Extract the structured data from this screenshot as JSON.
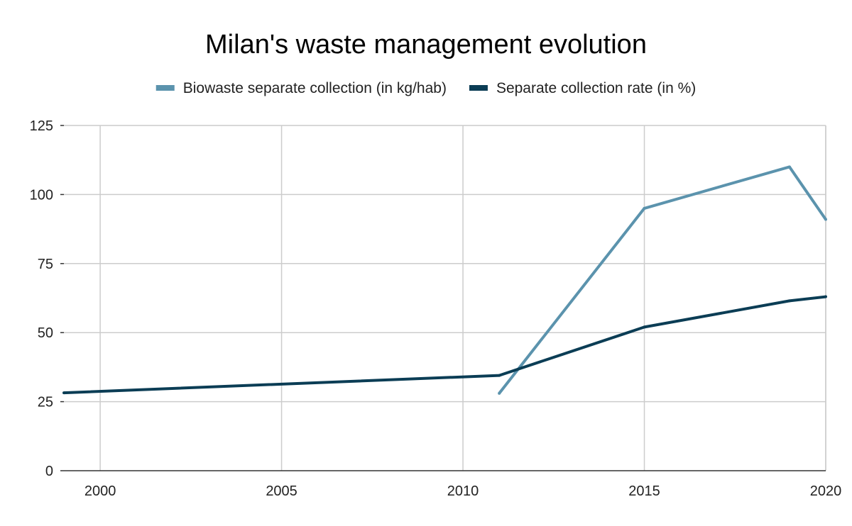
{
  "chart_data": {
    "type": "line",
    "title": "Milan's waste management evolution",
    "xlabel": "",
    "ylabel": "",
    "xlim": [
      1999,
      2020
    ],
    "ylim": [
      0,
      125
    ],
    "x_ticks": [
      2000,
      2005,
      2010,
      2015,
      2020
    ],
    "y_ticks": [
      0,
      25,
      50,
      75,
      100,
      125
    ],
    "grid": true,
    "legend_position": "top",
    "series": [
      {
        "name": "Biowaste separate collection (in kg/hab)",
        "color": "#5b93ad",
        "points": [
          {
            "x": 2011,
            "y": 28
          },
          {
            "x": 2015,
            "y": 95
          },
          {
            "x": 2019,
            "y": 110
          },
          {
            "x": 2020,
            "y": 91
          }
        ]
      },
      {
        "name": "Separate collection rate (in %)",
        "color": "#0b3d55",
        "points": [
          {
            "x": 1999,
            "y": 28.2
          },
          {
            "x": 2011,
            "y": 34.5
          },
          {
            "x": 2015,
            "y": 52
          },
          {
            "x": 2019,
            "y": 61.5
          },
          {
            "x": 2020,
            "y": 63
          }
        ]
      }
    ]
  }
}
